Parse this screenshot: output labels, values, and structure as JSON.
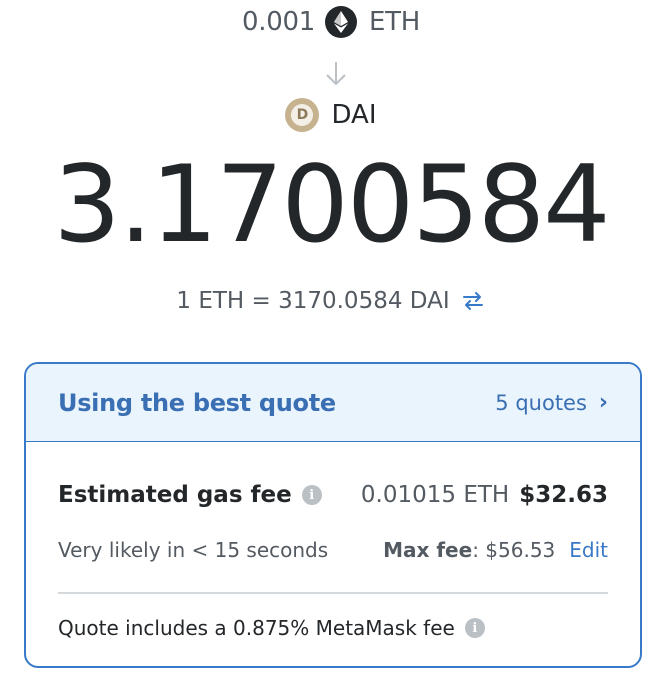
{
  "from": {
    "amount": "0.001",
    "symbol": "ETH",
    "icon": "eth-icon"
  },
  "to": {
    "symbol": "DAI",
    "icon": "dai-icon"
  },
  "received_amount": "3.1700584",
  "rate": {
    "text": "1 ETH = 3170.0584 DAI"
  },
  "quote_card": {
    "title": "Using the best quote",
    "quotes_link": "5 quotes",
    "gas_fee_label": "Estimated gas fee",
    "gas_fee_eth": "0.01015 ETH",
    "gas_fee_usd": "$32.63",
    "likely_text": "Very likely in < 15 seconds",
    "max_fee_label": "Max fee",
    "max_fee_value": ": $56.53",
    "edit_label": "Edit",
    "fee_note": "Quote includes a 0.875% MetaMask fee"
  },
  "colors": {
    "accent": "#3879c8",
    "header_bg": "#eaf4fd",
    "text": "#24272a",
    "muted": "#535a61"
  }
}
